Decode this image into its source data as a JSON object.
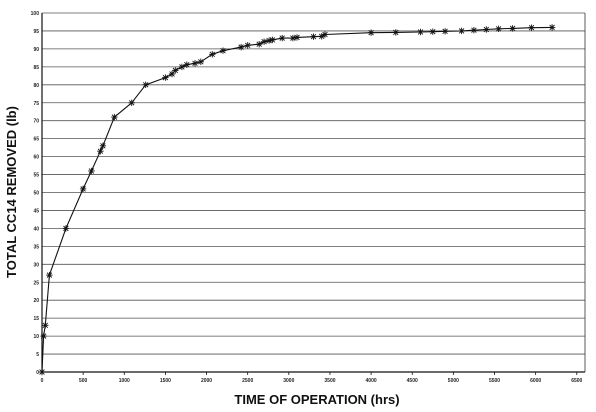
{
  "chart_data": {
    "type": "line",
    "title": "",
    "xlabel": "TIME OF OPERATION (hrs)",
    "ylabel": "TOTAL CC14 REMOVED (lb)",
    "xlim": [
      0,
      6600
    ],
    "ylim": [
      0,
      100
    ],
    "x_ticks": [
      "0",
      "500",
      "1000",
      "1500",
      "2000",
      "2500",
      "3000",
      "3500",
      "4000",
      "4500",
      "5000",
      "5500",
      "6000",
      "6500"
    ],
    "y_ticks": [
      "0",
      "5",
      "10",
      "15",
      "20",
      "25",
      "30",
      "35",
      "40",
      "45",
      "50",
      "55",
      "60",
      "65",
      "70",
      "75",
      "80",
      "85",
      "90",
      "95",
      "100"
    ],
    "grid": "horizontal",
    "marker": "asterisk",
    "line_color": "#111111",
    "series": [
      {
        "x": [
          0,
          20,
          40,
          90,
          290,
          500,
          600,
          710,
          740,
          880,
          1090,
          1260,
          1500,
          1580,
          1620,
          1700,
          1760,
          1860,
          1930,
          2070,
          2200,
          2420,
          2500,
          2640,
          2700,
          2760,
          2800,
          2920,
          3050,
          3100,
          3300,
          3400,
          3440,
          4000,
          4300,
          4600,
          4750,
          4900,
          5100,
          5250,
          5400,
          5550,
          5720,
          5950,
          6200
        ],
        "y": [
          0,
          10,
          13,
          27,
          40,
          51,
          56,
          61.5,
          63,
          71,
          75,
          80,
          82,
          83,
          84,
          85,
          85.6,
          86,
          86.4,
          88.5,
          89.5,
          90.5,
          91,
          91.3,
          92,
          92.3,
          92.5,
          93,
          93,
          93.2,
          93.4,
          93.5,
          94,
          94.5,
          94.6,
          94.7,
          94.8,
          94.9,
          95,
          95.2,
          95.4,
          95.6,
          95.7,
          95.9,
          96
        ]
      }
    ]
  }
}
